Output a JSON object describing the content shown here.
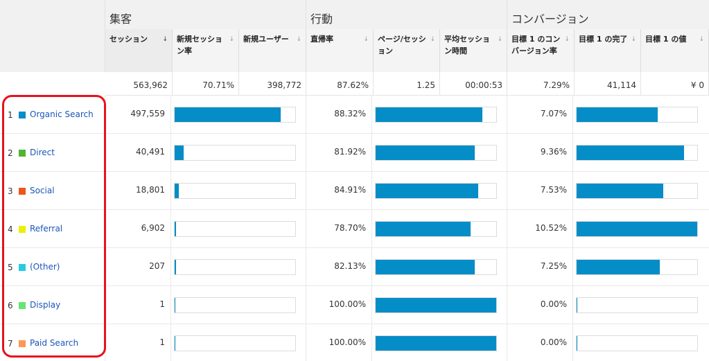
{
  "groups": {
    "acquisition": "集客",
    "behavior": "行動",
    "conversion": "コンバージョン"
  },
  "headers": [
    "セッション",
    "新規セッション率",
    "新規ユーザー",
    "直帰率",
    "ページ/セッション",
    "平均セッション時間",
    "目標 1 のコンバージョン率",
    "目標 1 の完了",
    "目標 1 の値"
  ],
  "sort_icon": "sort-arrow-icon",
  "totals": [
    "563,962",
    "70.71%",
    "398,772",
    "87.62%",
    "1.25",
    "00:00:53",
    "7.29%",
    "41,114",
    "¥ 0"
  ],
  "rows": [
    {
      "index": "1",
      "channel": "Organic Search",
      "color": "#058dc7",
      "sessions": "497,559",
      "sessions_share": 0.882,
      "bounce": "88.32%",
      "bounce_bar": 0.8832,
      "conv": "7.07%",
      "conv_bar": 0.672
    },
    {
      "index": "2",
      "channel": "Direct",
      "color": "#50b432",
      "sessions": "40,491",
      "sessions_share": 0.072,
      "bounce": "81.92%",
      "bounce_bar": 0.8192,
      "conv": "9.36%",
      "conv_bar": 0.89
    },
    {
      "index": "3",
      "channel": "Social",
      "color": "#ed561b",
      "sessions": "18,801",
      "sessions_share": 0.033,
      "bounce": "84.91%",
      "bounce_bar": 0.8491,
      "conv": "7.53%",
      "conv_bar": 0.716
    },
    {
      "index": "4",
      "channel": "Referral",
      "color": "#edef00",
      "sessions": "6,902",
      "sessions_share": 0.012,
      "bounce": "78.70%",
      "bounce_bar": 0.787,
      "conv": "10.52%",
      "conv_bar": 1.0
    },
    {
      "index": "5",
      "channel": "(Other)",
      "color": "#24cbe5",
      "sessions": "207",
      "sessions_share": 0.0004,
      "bounce": "82.13%",
      "bounce_bar": 0.8213,
      "conv": "7.25%",
      "conv_bar": 0.689
    },
    {
      "index": "6",
      "channel": "Display",
      "color": "#64e572",
      "sessions": "1",
      "sessions_share": 0.0,
      "bounce": "100.00%",
      "bounce_bar": 1.0,
      "conv": "0.00%",
      "conv_bar": 0.0
    },
    {
      "index": "7",
      "channel": "Paid Search",
      "color": "#ff9655",
      "sessions": "1",
      "sessions_share": 0.0,
      "bounce": "100.00%",
      "bounce_bar": 1.0,
      "conv": "0.00%",
      "conv_bar": 0.0
    }
  ],
  "colors": {
    "bar": "#058dc7",
    "highlight": "#e8101c",
    "link": "#1a55b9"
  }
}
